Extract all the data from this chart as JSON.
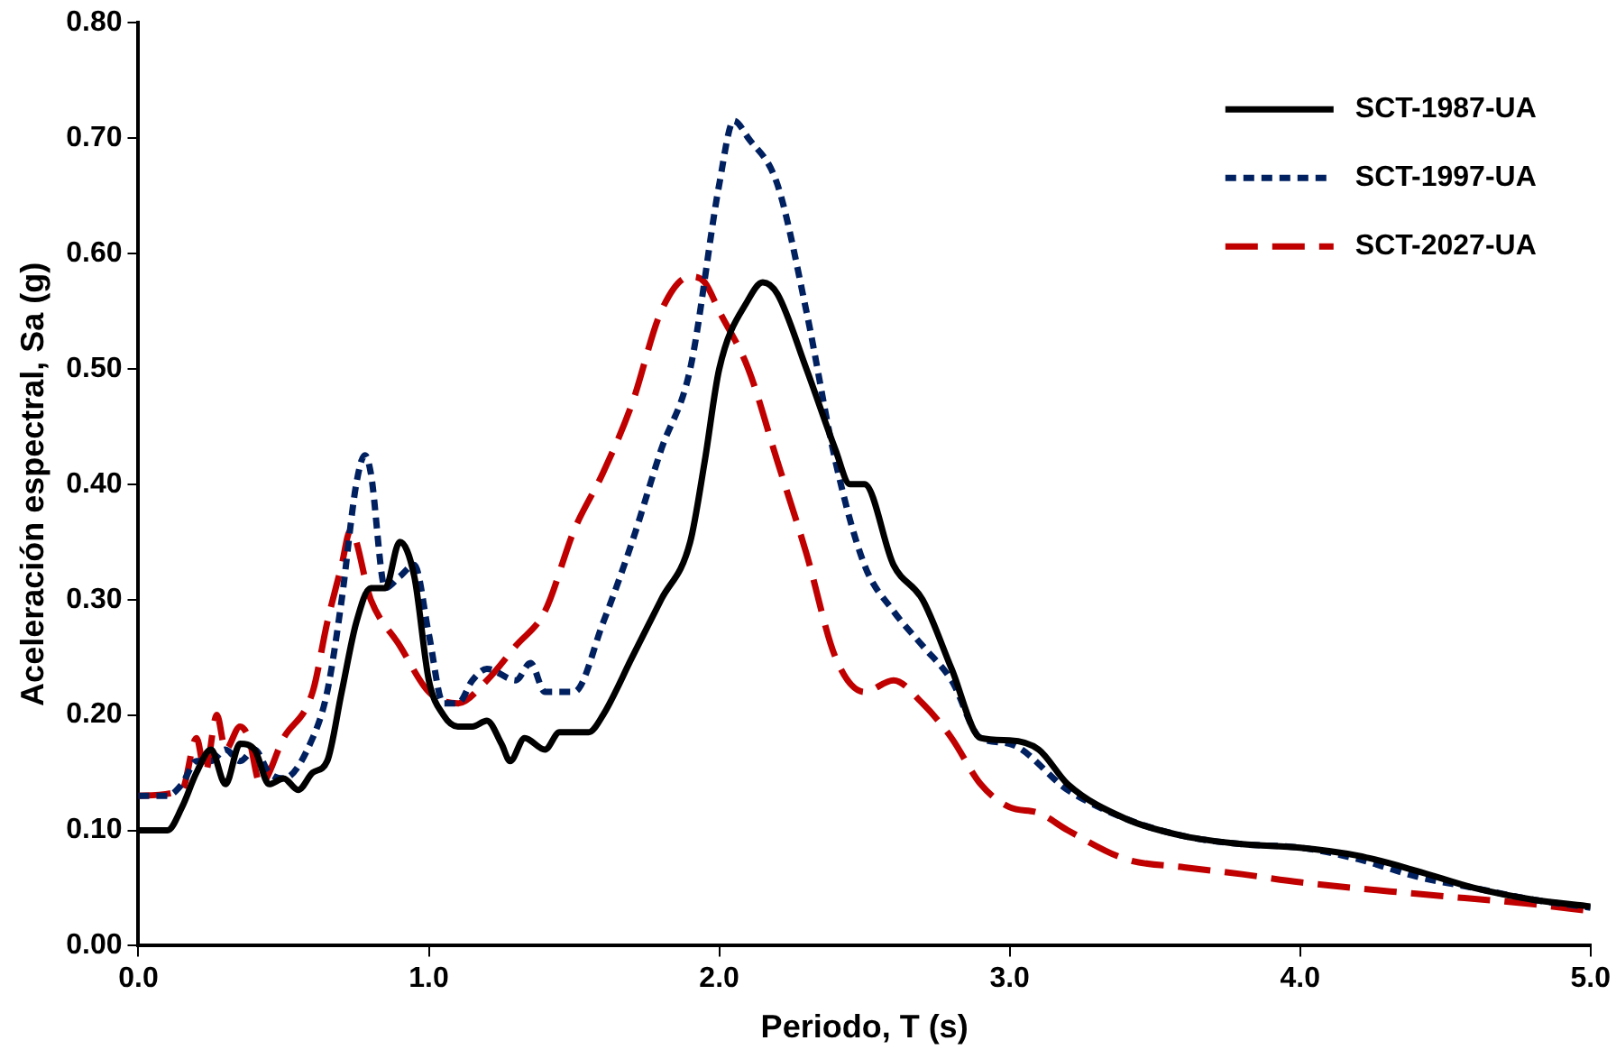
{
  "chart_data": {
    "type": "line",
    "xlabel": "Periodo, T (s)",
    "ylabel": "Aceleración espectral, Sa (g)",
    "xlim": [
      0,
      5
    ],
    "ylim": [
      0,
      0.8
    ],
    "xticks": [
      {
        "value": 0,
        "label": "0.0"
      },
      {
        "value": 1,
        "label": "1.0"
      },
      {
        "value": 2,
        "label": "2.0"
      },
      {
        "value": 3,
        "label": "3.0"
      },
      {
        "value": 4,
        "label": "4.0"
      },
      {
        "value": 5,
        "label": "5.0"
      }
    ],
    "yticks": [
      {
        "value": 0,
        "label": "0.00"
      },
      {
        "value": 0.1,
        "label": "0.10"
      },
      {
        "value": 0.2,
        "label": "0.20"
      },
      {
        "value": 0.3,
        "label": "0.30"
      },
      {
        "value": 0.4,
        "label": "0.40"
      },
      {
        "value": 0.5,
        "label": "0.50"
      },
      {
        "value": 0.6,
        "label": "0.60"
      },
      {
        "value": 0.7,
        "label": "0.70"
      },
      {
        "value": 0.8,
        "label": "0.80"
      }
    ],
    "grid": false,
    "legend": "top right",
    "marker": "none",
    "series": [
      {
        "name": "SCT-1987-UA",
        "color": "#000000",
        "line_style": "solid",
        "x": [
          0,
          0.1,
          0.15,
          0.2,
          0.25,
          0.3,
          0.35,
          0.4,
          0.45,
          0.5,
          0.55,
          0.6,
          0.65,
          0.7,
          0.75,
          0.8,
          0.85,
          0.9,
          0.95,
          1.0,
          1.05,
          1.1,
          1.15,
          1.2,
          1.25,
          1.28,
          1.33,
          1.4,
          1.45,
          1.55,
          1.6,
          1.7,
          1.8,
          1.9,
          1.95,
          2.0,
          2.1,
          2.15,
          2.2,
          2.3,
          2.4,
          2.45,
          2.5,
          2.6,
          2.7,
          2.8,
          2.9,
          3.0,
          3.1,
          3.2,
          3.4,
          3.6,
          3.8,
          4.0,
          4.2,
          4.4,
          4.6,
          4.8,
          5.0
        ],
        "values": [
          0.1,
          0.1,
          0.12,
          0.15,
          0.17,
          0.14,
          0.175,
          0.17,
          0.14,
          0.145,
          0.135,
          0.15,
          0.16,
          0.22,
          0.28,
          0.31,
          0.31,
          0.35,
          0.32,
          0.23,
          0.2,
          0.19,
          0.19,
          0.195,
          0.175,
          0.16,
          0.18,
          0.17,
          0.185,
          0.185,
          0.2,
          0.25,
          0.3,
          0.35,
          0.42,
          0.5,
          0.56,
          0.575,
          0.565,
          0.5,
          0.43,
          0.4,
          0.4,
          0.33,
          0.3,
          0.24,
          0.18,
          0.178,
          0.17,
          0.14,
          0.11,
          0.095,
          0.088,
          0.085,
          0.078,
          0.065,
          0.05,
          0.04,
          0.034
        ]
      },
      {
        "name": "SCT-1997-UA",
        "color": "#002060",
        "line_style": "dotted",
        "x": [
          0,
          0.1,
          0.15,
          0.2,
          0.25,
          0.3,
          0.35,
          0.4,
          0.45,
          0.5,
          0.6,
          0.65,
          0.7,
          0.75,
          0.78,
          0.8,
          0.85,
          0.9,
          0.95,
          1.0,
          1.05,
          1.1,
          1.15,
          1.2,
          1.3,
          1.35,
          1.4,
          1.5,
          1.6,
          1.7,
          1.8,
          1.9,
          2.0,
          2.05,
          2.1,
          2.2,
          2.3,
          2.4,
          2.5,
          2.6,
          2.7,
          2.8,
          2.9,
          3.0,
          3.2,
          3.4,
          3.6,
          3.8,
          4.0,
          4.2,
          4.4,
          4.6,
          4.8,
          5.0
        ],
        "values": [
          0.13,
          0.13,
          0.14,
          0.16,
          0.16,
          0.17,
          0.16,
          0.17,
          0.15,
          0.145,
          0.18,
          0.22,
          0.3,
          0.4,
          0.425,
          0.41,
          0.31,
          0.32,
          0.33,
          0.27,
          0.21,
          0.21,
          0.23,
          0.24,
          0.23,
          0.245,
          0.22,
          0.22,
          0.28,
          0.35,
          0.43,
          0.5,
          0.66,
          0.715,
          0.7,
          0.66,
          0.55,
          0.42,
          0.33,
          0.29,
          0.26,
          0.23,
          0.18,
          0.175,
          0.135,
          0.11,
          0.095,
          0.088,
          0.085,
          0.075,
          0.06,
          0.05,
          0.04,
          0.033
        ]
      },
      {
        "name": "SCT-2027-UA",
        "color": "#c00000",
        "line_style": "dashed",
        "x": [
          0,
          0.15,
          0.2,
          0.23,
          0.27,
          0.3,
          0.35,
          0.38,
          0.42,
          0.5,
          0.6,
          0.65,
          0.7,
          0.73,
          0.8,
          0.9,
          1.0,
          1.1,
          1.2,
          1.3,
          1.4,
          1.5,
          1.6,
          1.7,
          1.8,
          1.9,
          1.95,
          2.0,
          2.1,
          2.2,
          2.3,
          2.4,
          2.5,
          2.6,
          2.7,
          2.8,
          2.9,
          3.0,
          3.1,
          3.2,
          3.4,
          3.6,
          3.8,
          4.0,
          4.4,
          4.8,
          5.0
        ],
        "values": [
          0.13,
          0.135,
          0.18,
          0.15,
          0.2,
          0.17,
          0.19,
          0.18,
          0.14,
          0.18,
          0.22,
          0.28,
          0.33,
          0.36,
          0.3,
          0.26,
          0.22,
          0.21,
          0.23,
          0.26,
          0.29,
          0.36,
          0.41,
          0.47,
          0.55,
          0.58,
          0.575,
          0.55,
          0.5,
          0.42,
          0.34,
          0.25,
          0.22,
          0.23,
          0.21,
          0.18,
          0.14,
          0.12,
          0.115,
          0.1,
          0.075,
          0.068,
          0.062,
          0.055,
          0.045,
          0.036,
          0.03
        ]
      }
    ]
  }
}
